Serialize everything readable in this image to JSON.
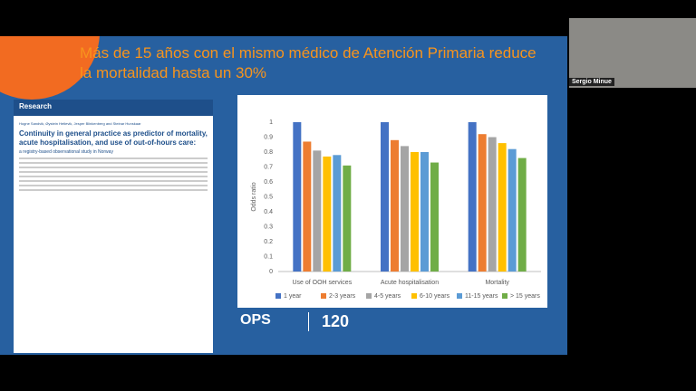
{
  "slide": {
    "title": "Más de 15 años con el mismo médico de Atención Primaria reduce la mortalidad hasta un 30%"
  },
  "paper": {
    "section": "Research",
    "authors": "Hogne Sandvik, Øystein Hetlevik, Jesper Blinkenberg and Steinar Hunskaar",
    "title": "Continuity in general practice as predictor of mortality, acute hospitalisation, and use of out-of-hours care:",
    "subtitle": "a registry-based observational study in Norway"
  },
  "chart_data": {
    "type": "bar",
    "y_label": "Odds ratio",
    "categories": [
      "Use of OOH services",
      "Acute hospitalisation",
      "Mortality"
    ],
    "series": [
      {
        "name": "1 year",
        "color": "#4472c4",
        "values": [
          1,
          1,
          1
        ]
      },
      {
        "name": "2-3 years",
        "color": "#ed7d31",
        "values": [
          0.87,
          0.88,
          0.92
        ]
      },
      {
        "name": "4-5 years",
        "color": "#a5a5a5",
        "values": [
          0.81,
          0.84,
          0.9
        ]
      },
      {
        "name": "6-10 years",
        "color": "#ffc000",
        "values": [
          0.77,
          0.8,
          0.86
        ]
      },
      {
        "name": "11-15 years",
        "color": "#5b9bd5",
        "values": [
          0.78,
          0.8,
          0.82
        ]
      },
      {
        "name": "> 15 years",
        "color": "#70ad47",
        "values": [
          0.71,
          0.73,
          0.76
        ]
      }
    ],
    "ylim": [
      0,
      1
    ],
    "yticks": [
      0,
      0.1,
      0.2,
      0.3,
      0.4,
      0.5,
      0.6,
      0.7,
      0.8,
      0.9,
      1
    ],
    "grid": false
  },
  "logo": {
    "text": "OPS",
    "anniversary": "120"
  },
  "participant": {
    "name": "Sergio Minue"
  }
}
